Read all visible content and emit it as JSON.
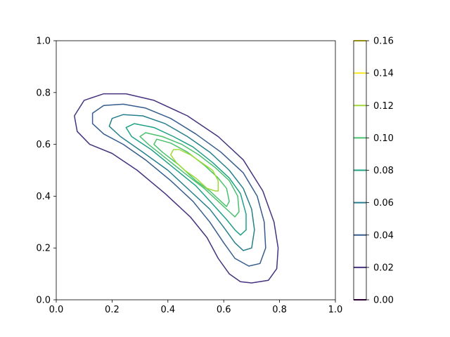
{
  "chart_data": {
    "type": "contour",
    "title": "",
    "xlabel": "",
    "ylabel": "",
    "xlim": [
      0,
      1
    ],
    "ylim": [
      0,
      1
    ],
    "xticks": [
      "0.0",
      "0.2",
      "0.4",
      "0.6",
      "0.8",
      "1.0"
    ],
    "yticks": [
      "0.0",
      "0.2",
      "0.4",
      "0.6",
      "0.8",
      "1.0"
    ],
    "grid": false,
    "colormap": "viridis",
    "colorbar": {
      "levels": [
        0.0,
        0.02,
        0.04,
        0.06,
        0.08,
        0.1,
        0.12,
        0.14,
        0.16
      ],
      "tick_labels": [
        "0.00",
        "0.02",
        "0.04",
        "0.06",
        "0.08",
        "0.10",
        "0.12",
        "0.14",
        "0.16"
      ],
      "colors": [
        "#440154",
        "#46327e",
        "#365c8d",
        "#277f8e",
        "#1fa187",
        "#4ac16d",
        "#a0da39",
        "#fde725",
        "#fde725"
      ]
    },
    "contours": [
      {
        "level": 0.02,
        "color": "#46327e",
        "points": [
          [
            0.7,
            0.065
          ],
          [
            0.76,
            0.075
          ],
          [
            0.79,
            0.12
          ],
          [
            0.795,
            0.2
          ],
          [
            0.78,
            0.3
          ],
          [
            0.74,
            0.42
          ],
          [
            0.67,
            0.54
          ],
          [
            0.58,
            0.63
          ],
          [
            0.47,
            0.71
          ],
          [
            0.35,
            0.77
          ],
          [
            0.25,
            0.795
          ],
          [
            0.17,
            0.795
          ],
          [
            0.1,
            0.77
          ],
          [
            0.065,
            0.71
          ],
          [
            0.075,
            0.65
          ],
          [
            0.12,
            0.6
          ],
          [
            0.2,
            0.565
          ],
          [
            0.29,
            0.5
          ],
          [
            0.39,
            0.41
          ],
          [
            0.48,
            0.32
          ],
          [
            0.54,
            0.24
          ],
          [
            0.58,
            0.16
          ],
          [
            0.62,
            0.1
          ],
          [
            0.66,
            0.07
          ]
        ]
      },
      {
        "level": 0.04,
        "color": "#365c8d",
        "points": [
          [
            0.69,
            0.13
          ],
          [
            0.73,
            0.14
          ],
          [
            0.75,
            0.2
          ],
          [
            0.745,
            0.3
          ],
          [
            0.72,
            0.4
          ],
          [
            0.67,
            0.49
          ],
          [
            0.59,
            0.57
          ],
          [
            0.5,
            0.64
          ],
          [
            0.41,
            0.7
          ],
          [
            0.32,
            0.74
          ],
          [
            0.24,
            0.755
          ],
          [
            0.17,
            0.75
          ],
          [
            0.13,
            0.72
          ],
          [
            0.13,
            0.68
          ],
          [
            0.17,
            0.64
          ],
          [
            0.24,
            0.6
          ],
          [
            0.32,
            0.54
          ],
          [
            0.41,
            0.46
          ],
          [
            0.49,
            0.38
          ],
          [
            0.55,
            0.3
          ],
          [
            0.6,
            0.22
          ],
          [
            0.64,
            0.16
          ]
        ]
      },
      {
        "level": 0.06,
        "color": "#277f8e",
        "points": [
          [
            0.67,
            0.19
          ],
          [
            0.7,
            0.2
          ],
          [
            0.71,
            0.27
          ],
          [
            0.7,
            0.35
          ],
          [
            0.67,
            0.43
          ],
          [
            0.62,
            0.5
          ],
          [
            0.55,
            0.57
          ],
          [
            0.47,
            0.63
          ],
          [
            0.39,
            0.68
          ],
          [
            0.31,
            0.71
          ],
          [
            0.24,
            0.715
          ],
          [
            0.2,
            0.7
          ],
          [
            0.19,
            0.67
          ],
          [
            0.23,
            0.63
          ],
          [
            0.31,
            0.57
          ],
          [
            0.4,
            0.5
          ],
          [
            0.48,
            0.42
          ],
          [
            0.55,
            0.35
          ],
          [
            0.6,
            0.28
          ],
          [
            0.64,
            0.22
          ]
        ]
      },
      {
        "level": 0.08,
        "color": "#1fa187",
        "points": [
          [
            0.66,
            0.25
          ],
          [
            0.68,
            0.27
          ],
          [
            0.68,
            0.33
          ],
          [
            0.66,
            0.41
          ],
          [
            0.62,
            0.47
          ],
          [
            0.56,
            0.53
          ],
          [
            0.49,
            0.59
          ],
          [
            0.42,
            0.63
          ],
          [
            0.35,
            0.665
          ],
          [
            0.28,
            0.68
          ],
          [
            0.25,
            0.665
          ],
          [
            0.27,
            0.63
          ],
          [
            0.34,
            0.58
          ],
          [
            0.42,
            0.51
          ],
          [
            0.5,
            0.44
          ],
          [
            0.56,
            0.37
          ],
          [
            0.61,
            0.31
          ],
          [
            0.64,
            0.27
          ]
        ]
      },
      {
        "level": 0.1,
        "color": "#4ac16d",
        "points": [
          [
            0.64,
            0.32
          ],
          [
            0.655,
            0.34
          ],
          [
            0.65,
            0.4
          ],
          [
            0.62,
            0.46
          ],
          [
            0.57,
            0.51
          ],
          [
            0.51,
            0.56
          ],
          [
            0.45,
            0.6
          ],
          [
            0.38,
            0.63
          ],
          [
            0.32,
            0.645
          ],
          [
            0.3,
            0.63
          ],
          [
            0.33,
            0.6
          ],
          [
            0.4,
            0.54
          ],
          [
            0.47,
            0.48
          ],
          [
            0.53,
            0.43
          ],
          [
            0.58,
            0.38
          ],
          [
            0.62,
            0.34
          ]
        ]
      },
      {
        "level": 0.12,
        "color": "#4ac16d",
        "points": [
          [
            0.61,
            0.36
          ],
          [
            0.62,
            0.38
          ],
          [
            0.61,
            0.43
          ],
          [
            0.58,
            0.47
          ],
          [
            0.53,
            0.52
          ],
          [
            0.47,
            0.57
          ],
          [
            0.41,
            0.605
          ],
          [
            0.36,
            0.62
          ],
          [
            0.35,
            0.6
          ],
          [
            0.38,
            0.57
          ],
          [
            0.44,
            0.52
          ],
          [
            0.5,
            0.46
          ],
          [
            0.55,
            0.42
          ],
          [
            0.59,
            0.38
          ]
        ]
      },
      {
        "level": 0.14,
        "color": "#a0da39",
        "points": [
          [
            0.58,
            0.42
          ],
          [
            0.58,
            0.46
          ],
          [
            0.56,
            0.5
          ],
          [
            0.52,
            0.53
          ],
          [
            0.48,
            0.56
          ],
          [
            0.44,
            0.58
          ],
          [
            0.42,
            0.58
          ],
          [
            0.41,
            0.56
          ],
          [
            0.43,
            0.53
          ],
          [
            0.46,
            0.5
          ],
          [
            0.5,
            0.47
          ],
          [
            0.54,
            0.43
          ],
          [
            0.57,
            0.42
          ]
        ]
      }
    ]
  }
}
